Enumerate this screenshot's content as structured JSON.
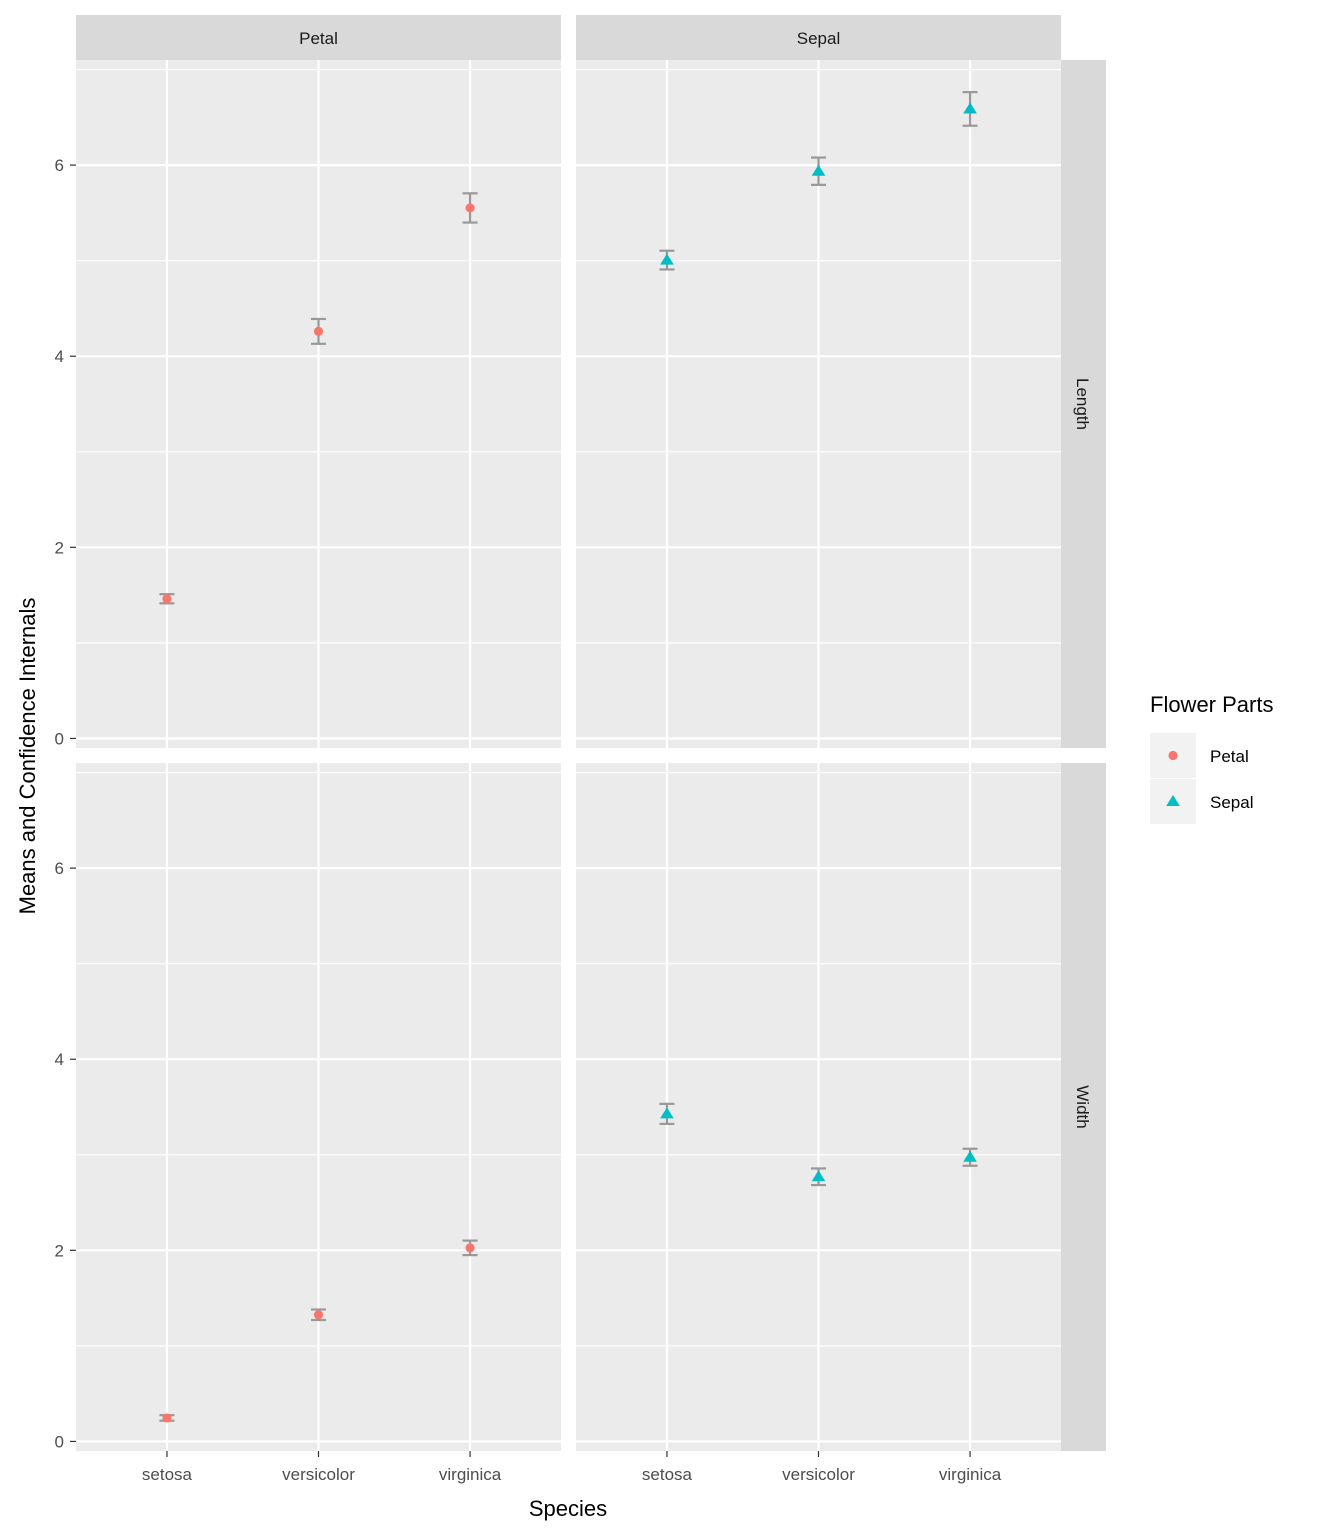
{
  "chart_data": {
    "type": "scatter",
    "subtype": "faceted point with error bars",
    "xlabel": "Species",
    "ylabel": "Means and Confidence Internals",
    "categories": [
      "setosa",
      "versicolor",
      "virginica"
    ],
    "ylim": [
      -0.1,
      7.1
    ],
    "yticks": [
      0,
      2,
      4,
      6
    ],
    "grid": true,
    "facet_cols": [
      "Petal",
      "Sepal"
    ],
    "facet_rows": [
      "Length",
      "Width"
    ],
    "legend": {
      "title": "Flower Parts",
      "placement": "right",
      "entries": [
        {
          "label": "Petal",
          "color": "#F8766D",
          "shape": "circle"
        },
        {
          "label": "Sepal",
          "color": "#00BFC4",
          "shape": "triangle"
        }
      ]
    },
    "errorbar_color": "#999999",
    "panels": [
      {
        "col": "Petal",
        "row": "Length",
        "series": "Petal",
        "means": [
          1.462,
          4.26,
          5.552
        ],
        "lower": [
          1.414,
          4.13,
          5.399
        ],
        "upper": [
          1.51,
          4.39,
          5.705
        ]
      },
      {
        "col": "Sepal",
        "row": "Length",
        "series": "Sepal",
        "means": [
          5.006,
          5.936,
          6.588
        ],
        "lower": [
          4.908,
          5.793,
          6.412
        ],
        "upper": [
          5.104,
          6.079,
          6.764
        ]
      },
      {
        "col": "Petal",
        "row": "Width",
        "series": "Petal",
        "means": [
          0.246,
          1.326,
          2.026
        ],
        "lower": [
          0.217,
          1.271,
          1.95
        ],
        "upper": [
          0.275,
          1.381,
          2.102
        ]
      },
      {
        "col": "Sepal",
        "row": "Width",
        "series": "Sepal",
        "means": [
          3.428,
          2.77,
          2.974
        ],
        "lower": [
          3.323,
          2.683,
          2.885
        ],
        "upper": [
          3.533,
          2.857,
          3.063
        ]
      }
    ]
  }
}
